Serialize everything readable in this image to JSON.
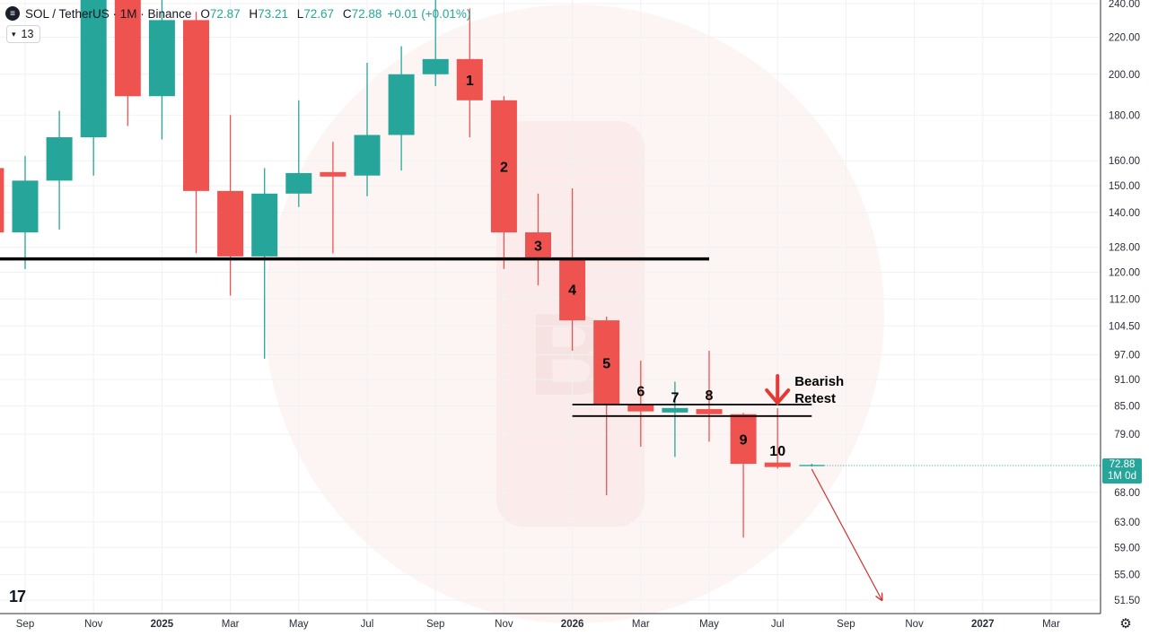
{
  "header": {
    "symbol_title": "SOL / TetherUS · 1M · Binance",
    "ohlc": [
      {
        "key": "O",
        "value": "72.87"
      },
      {
        "key": "H",
        "value": "73.21"
      },
      {
        "key": "L",
        "value": "72.67"
      },
      {
        "key": "C",
        "value": "72.88"
      }
    ],
    "change": "+0.01 (+0.01%)",
    "indicator_count": "13"
  },
  "price_badge": {
    "price": "72.88",
    "timer": "1M 0d"
  },
  "logo_text": "17",
  "colors": {
    "up": "#26a69a",
    "down": "#ef5350",
    "background": "#ffffff",
    "support_line": "#000000",
    "projection_arrow": "#d32f2f"
  },
  "chart_data": {
    "type": "candlestick",
    "scale": "log",
    "ylim": [
      48,
      240
    ],
    "y_ticks": [
      240,
      220,
      200,
      180,
      160,
      150,
      140,
      128,
      120,
      112,
      104.5,
      97,
      91,
      85,
      79,
      72.88,
      68,
      63,
      59,
      55,
      51.5
    ],
    "y_tick_labels": [
      "240.00",
      "220.00",
      "200.00",
      "180.00",
      "160.00",
      "150.00",
      "140.00",
      "128.00",
      "120.00",
      "112.00",
      "104.50",
      "97.00",
      "91.00",
      "85.00",
      "79.00",
      "",
      "68.00",
      "63.00",
      "59.00",
      "55.00",
      "51.50"
    ],
    "x_ticks": [
      {
        "date": "2024-09",
        "label": "Sep",
        "bold": false
      },
      {
        "date": "2024-11",
        "label": "Nov",
        "bold": false
      },
      {
        "date": "2025-01",
        "label": "2025",
        "bold": true
      },
      {
        "date": "2025-03",
        "label": "Mar",
        "bold": false
      },
      {
        "date": "2025-05",
        "label": "May",
        "bold": false
      },
      {
        "date": "2025-07",
        "label": "Jul",
        "bold": false
      },
      {
        "date": "2025-09",
        "label": "Sep",
        "bold": false
      },
      {
        "date": "2025-11",
        "label": "Nov",
        "bold": false
      },
      {
        "date": "2026-01",
        "label": "2026",
        "bold": true
      },
      {
        "date": "2026-03",
        "label": "Mar",
        "bold": false
      },
      {
        "date": "2026-05",
        "label": "May",
        "bold": false
      },
      {
        "date": "2026-07",
        "label": "Jul",
        "bold": false
      },
      {
        "date": "2026-09",
        "label": "Sep",
        "bold": false
      },
      {
        "date": "2026-11",
        "label": "Nov",
        "bold": false
      },
      {
        "date": "2027-01",
        "label": "2027",
        "bold": true
      },
      {
        "date": "2027-03",
        "label": "Mar",
        "bold": false
      }
    ],
    "candles": [
      {
        "date": "2024-08",
        "open": 157,
        "high": 160,
        "low": 130,
        "close": 133,
        "label": ""
      },
      {
        "date": "2024-09",
        "open": 133,
        "high": 162,
        "low": 121,
        "close": 152,
        "label": ""
      },
      {
        "date": "2024-10",
        "open": 152,
        "high": 182,
        "low": 134,
        "close": 170,
        "label": ""
      },
      {
        "date": "2024-11",
        "open": 170,
        "high": 265,
        "low": 154,
        "close": 245,
        "label": ""
      },
      {
        "date": "2024-12",
        "open": 245,
        "high": 264,
        "low": 175,
        "close": 189,
        "label": ""
      },
      {
        "date": "2025-01",
        "open": 189,
        "high": 295,
        "low": 169,
        "close": 230,
        "label": ""
      },
      {
        "date": "2025-02",
        "open": 230,
        "high": 235,
        "low": 126,
        "close": 148,
        "label": ""
      },
      {
        "date": "2025-03",
        "open": 148,
        "high": 180,
        "low": 113,
        "close": 125,
        "label": ""
      },
      {
        "date": "2025-04",
        "open": 125,
        "high": 157,
        "low": 96,
        "close": 147,
        "label": ""
      },
      {
        "date": "2025-05",
        "open": 147,
        "high": 187,
        "low": 142,
        "close": 155,
        "label": ""
      },
      {
        "date": "2025-06",
        "open": 155,
        "high": 168,
        "low": 126,
        "close": 154,
        "label": ""
      },
      {
        "date": "2025-07",
        "open": 154,
        "high": 206,
        "low": 146,
        "close": 171,
        "label": ""
      },
      {
        "date": "2025-08",
        "open": 171,
        "high": 215,
        "low": 156,
        "close": 200,
        "label": ""
      },
      {
        "date": "2025-09",
        "open": 200,
        "high": 253,
        "low": 194,
        "close": 208,
        "label": ""
      },
      {
        "date": "2025-10",
        "open": 208,
        "high": 237,
        "low": 170,
        "close": 187,
        "label": "1"
      },
      {
        "date": "2025-11",
        "open": 187,
        "high": 189,
        "low": 121,
        "close": 133,
        "label": "2"
      },
      {
        "date": "2025-12",
        "open": 133,
        "high": 147,
        "low": 116,
        "close": 124.5,
        "label": "3"
      },
      {
        "date": "2026-01",
        "open": 124.5,
        "high": 149,
        "low": 98,
        "close": 106,
        "label": "4"
      },
      {
        "date": "2026-02",
        "open": 106,
        "high": 107,
        "low": 67.5,
        "close": 85.2,
        "label": "5"
      },
      {
        "date": "2026-03",
        "open": 85.2,
        "high": 95.5,
        "low": 76.5,
        "close": 83.8,
        "label": "6"
      },
      {
        "date": "2026-04",
        "open": 83.8,
        "high": 90.5,
        "low": 74.5,
        "close": 84.3,
        "label": "7"
      },
      {
        "date": "2026-05",
        "open": 84.3,
        "high": 98,
        "low": 77.5,
        "close": 83.2,
        "label": "8"
      },
      {
        "date": "2026-06",
        "open": 83.2,
        "high": 83.5,
        "low": 60.5,
        "close": 73.2,
        "label": "9"
      },
      {
        "date": "2026-07",
        "open": 73.2,
        "high": 84.5,
        "low": 72.3,
        "close": 72.85,
        "label": "10"
      },
      {
        "date": "2026-08",
        "open": 72.87,
        "high": 73.21,
        "low": 72.67,
        "close": 72.88,
        "label": ""
      }
    ],
    "horizontal_lines": [
      {
        "price": 124.2,
        "from": "2024-07",
        "to": "2026-05"
      },
      {
        "price": 85.3,
        "from": "2026-01",
        "to": "2026-08"
      },
      {
        "price": 82.8,
        "from": "2026-01",
        "to": "2026-08"
      }
    ],
    "annotations": [
      {
        "text_lines": [
          "Bearish",
          "Retest"
        ],
        "arrow": "down",
        "date": "2026-07",
        "price": 91
      }
    ],
    "projection": {
      "from": {
        "date": "2026-08",
        "price": 72.2
      },
      "to": {
        "date": "2026-10",
        "price": 51.5
      }
    },
    "current_price": 72.88
  }
}
